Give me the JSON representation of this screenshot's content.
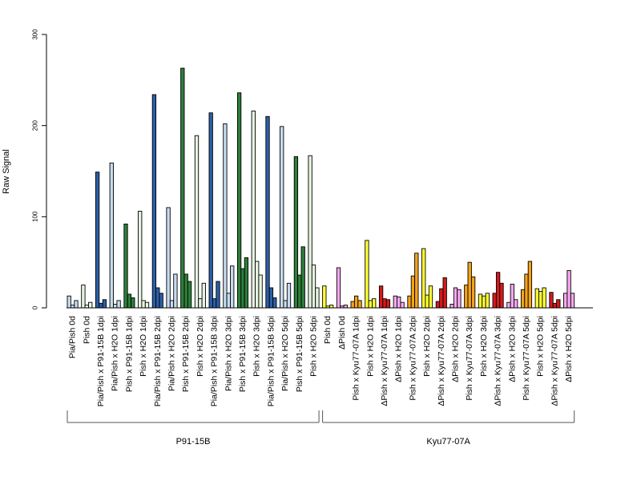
{
  "chart_data": {
    "type": "bar",
    "title": "",
    "xlabel": "",
    "ylabel": "Raw Signal",
    "ylim": [
      0,
      300
    ],
    "yticks": [
      0,
      100,
      200,
      300
    ],
    "grid": false,
    "legend": "none",
    "bars_per_group": 3,
    "categories": [
      {
        "label": "Pia/Pish 0d",
        "color": "#c6dbef",
        "values": [
          13,
          3,
          8
        ]
      },
      {
        "label": "Pish 0d",
        "color": "#e5f5e0",
        "values": [
          25,
          3,
          6
        ]
      },
      {
        "label": "Pia/Pish x P91-15B 1dpi",
        "color": "#2c5fa8",
        "values": [
          149,
          5,
          9
        ]
      },
      {
        "label": "Pia/Pish x H2O 1dpi",
        "color": "#c6dbef",
        "values": [
          159,
          4,
          8
        ]
      },
      {
        "label": "Pish x P91-15B 1dpi",
        "color": "#2d7f3a",
        "values": [
          92,
          15,
          11
        ]
      },
      {
        "label": "Pish x H2O 1dpi",
        "color": "#e5f5e0",
        "values": [
          106,
          8,
          6
        ]
      },
      {
        "label": "Pia/Pish x P91-15B 2dpi",
        "color": "#2c5fa8",
        "values": [
          234,
          22,
          16
        ]
      },
      {
        "label": "Pia/Pish x H2O 2dpi",
        "color": "#c6dbef",
        "values": [
          110,
          8,
          37
        ]
      },
      {
        "label": "Pish x P91-15B 2dpi",
        "color": "#2d7f3a",
        "values": [
          263,
          37,
          29
        ]
      },
      {
        "label": "Pish x H2O 2dpi",
        "color": "#e5f5e0",
        "values": [
          189,
          10,
          27
        ]
      },
      {
        "label": "Pia/Pish x P91-15B 3dpi",
        "color": "#2c5fa8",
        "values": [
          214,
          10,
          29
        ]
      },
      {
        "label": "Pia/Pish x H2O 3dpi",
        "color": "#c6dbef",
        "values": [
          202,
          16,
          46
        ]
      },
      {
        "label": "Pish x P91-15B 3dpi",
        "color": "#2d7f3a",
        "values": [
          236,
          43,
          55
        ]
      },
      {
        "label": "Pish x H2O 3dpi",
        "color": "#e5f5e0",
        "values": [
          216,
          51,
          36
        ]
      },
      {
        "label": "Pia/Pish x P91-15B 5dpi",
        "color": "#2c5fa8",
        "values": [
          210,
          22,
          11
        ]
      },
      {
        "label": "Pia/Pish x H2O 5dpi",
        "color": "#c6dbef",
        "values": [
          199,
          8,
          27
        ]
      },
      {
        "label": "Pish x P91-15B 5dpi",
        "color": "#2d7f3a",
        "values": [
          166,
          36,
          67
        ]
      },
      {
        "label": "Pish x H2O 5dpi",
        "color": "#e5f5e0",
        "values": [
          167,
          47,
          22
        ]
      },
      {
        "label": "Pish 0d",
        "color": "#ffff33",
        "values": [
          24,
          2,
          3
        ]
      },
      {
        "label": "ΔPish 0d",
        "color": "#f7a8f0",
        "values": [
          44,
          2,
          3
        ]
      },
      {
        "label": "Pish x Kyu77-07A 1dpi",
        "color": "#f5a31a",
        "values": [
          7,
          13,
          8
        ]
      },
      {
        "label": "Pish x H2O 1dpi",
        "color": "#ffff33",
        "values": [
          74,
          8,
          10
        ]
      },
      {
        "label": "ΔPish x Kyu77-07A 1dpi",
        "color": "#d7191c",
        "values": [
          24,
          10,
          9
        ]
      },
      {
        "label": "ΔPish x H2O 1dpi",
        "color": "#f7a8f0",
        "values": [
          13,
          12,
          6
        ]
      },
      {
        "label": "Pish x Kyu77-07A 2dpi",
        "color": "#f5a31a",
        "values": [
          13,
          35,
          60
        ]
      },
      {
        "label": "Pish x H2O 2dpi",
        "color": "#ffff33",
        "values": [
          65,
          14,
          24
        ]
      },
      {
        "label": "ΔPish x Kyu77-07A 2dpi",
        "color": "#d7191c",
        "values": [
          7,
          21,
          33
        ]
      },
      {
        "label": "ΔPish x H2O 2dpi",
        "color": "#f7a8f0",
        "values": [
          4,
          22,
          20
        ]
      },
      {
        "label": "Pish x Kyu77-07A 3dpi",
        "color": "#f5a31a",
        "values": [
          25,
          50,
          34
        ]
      },
      {
        "label": "Pish x H2O 3dpi",
        "color": "#ffff33",
        "values": [
          15,
          13,
          16
        ]
      },
      {
        "label": "ΔPish x Kyu77-07A 3dpi",
        "color": "#d7191c",
        "values": [
          16,
          39,
          27
        ]
      },
      {
        "label": "ΔPish x H2O 3dpi",
        "color": "#f7a8f0",
        "values": [
          6,
          26,
          9
        ]
      },
      {
        "label": "Pish x Kyu77-07A 5dpi",
        "color": "#f5a31a",
        "values": [
          20,
          37,
          51
        ]
      },
      {
        "label": "Pish x H2O 5dpi",
        "color": "#ffff33",
        "values": [
          21,
          18,
          22
        ]
      },
      {
        "label": "ΔPish x Kyu77-07A 5dpi",
        "color": "#d7191c",
        "values": [
          17,
          5,
          9
        ]
      },
      {
        "label": "ΔPish x H2O 5dpi",
        "color": "#f7a8f0",
        "values": [
          16,
          41,
          16
        ]
      }
    ],
    "groups": [
      {
        "label": "P91-15B",
        "first": 0,
        "last": 17
      },
      {
        "label": "Kyu77-07A",
        "first": 18,
        "last": 35
      }
    ]
  }
}
